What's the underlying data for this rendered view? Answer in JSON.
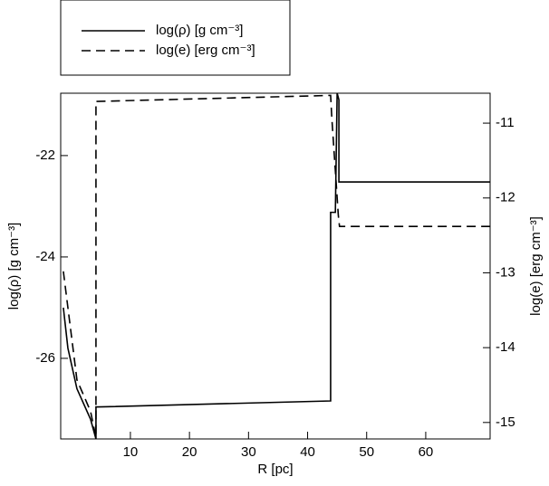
{
  "chart_data": {
    "type": "line",
    "xlabel": "R [pc]",
    "ylabel": "log(ρ) [g cm⁻³]",
    "y2label": "log(e) [erg cm⁻³]",
    "xlim": [
      -1.8,
      70.9
    ],
    "xticks": [
      10,
      20,
      30,
      40,
      50,
      60
    ],
    "ylim": [
      -27.59,
      -20.77
    ],
    "yticks": [
      -22,
      -24,
      -26
    ],
    "y2lim": [
      -15.22,
      -10.6
    ],
    "y2ticks": [
      -11,
      -12,
      -13,
      -14,
      -15
    ],
    "series": [
      {
        "name": "log(ρ) [g cm⁻³]",
        "color": "#000000",
        "dash": false,
        "x": [
          -1.35,
          -0.58,
          0.95,
          3.25,
          4.17,
          4.17,
          43.9,
          43.9,
          44.7,
          45.0,
          45.3,
          45.3,
          70.9
        ],
        "values": [
          -25.0,
          -25.8,
          -26.6,
          -27.2,
          -27.59,
          -26.96,
          -26.84,
          -23.12,
          -23.12,
          -20.77,
          -20.9,
          -22.52,
          -22.52
        ]
      },
      {
        "name": "log(e) [erg cm⁻³]",
        "color": "#000000",
        "dash": true,
        "axis": "y2",
        "x": [
          -1.35,
          0.95,
          3.25,
          4.17,
          4.17,
          43.5,
          43.9,
          44.1,
          45.2,
          45.4,
          70.9
        ],
        "values": [
          -12.98,
          -14.43,
          -14.85,
          -15.2,
          -10.71,
          -10.63,
          -10.63,
          -10.93,
          -12.23,
          -12.38,
          -12.38
        ]
      }
    ]
  }
}
